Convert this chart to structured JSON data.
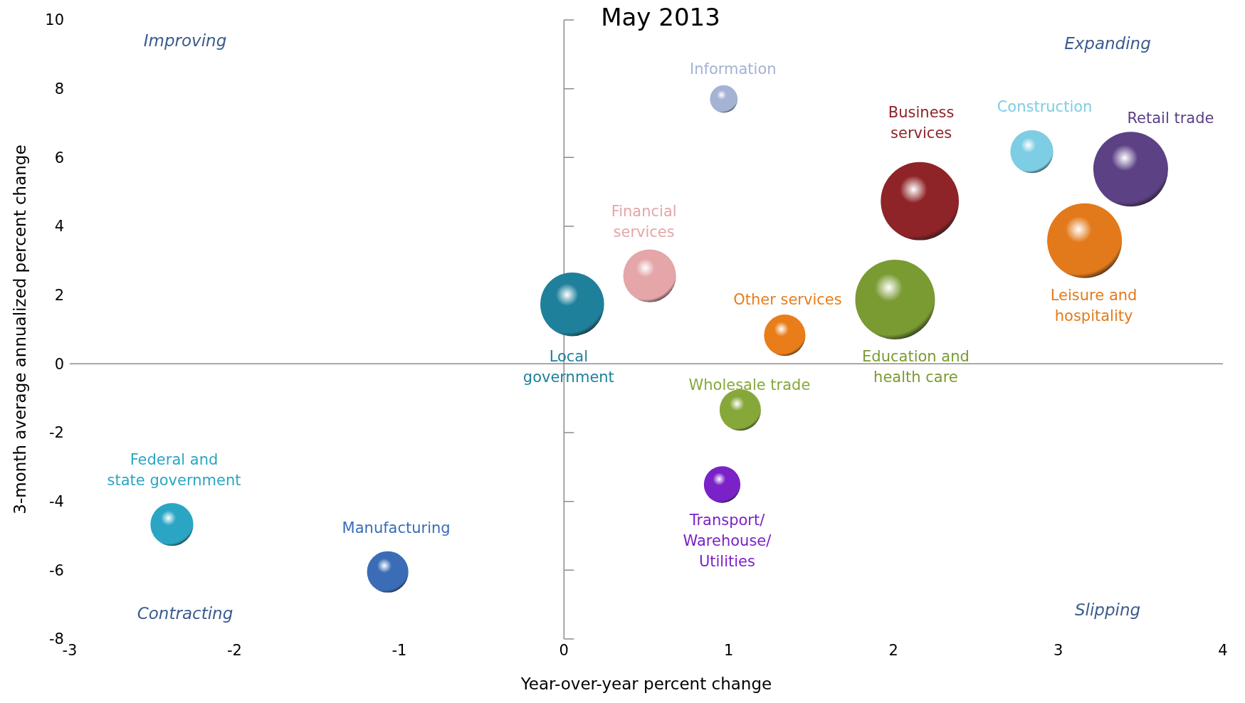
{
  "chart_data": {
    "type": "bubble",
    "title": "May 2013",
    "xlabel": "Year-over-year percent change",
    "ylabel": "3-month average annualized percent change",
    "annotations": [
      "Improving",
      "Expanding",
      "Contracting",
      "Slipping"
    ],
    "xlim": [
      -3,
      4
    ],
    "xticks": [
      -3,
      -2,
      -1,
      0,
      1,
      2,
      3,
      4
    ],
    "ylim": [
      -8,
      10
    ],
    "yticks": [
      -8,
      -6,
      -4,
      -2,
      0,
      2,
      4,
      6,
      8,
      10
    ],
    "marker": "circle",
    "series": [
      {
        "name": "Information",
        "color": "#a4b2d4",
        "x": [
          0.97
        ],
        "values": [
          7.7
        ],
        "sizes": [
          0.12
        ]
      },
      {
        "name": "Business services",
        "color": "#8e2428",
        "x": [
          2.16
        ],
        "values": [
          4.73
        ],
        "sizes": [
          0.96
        ]
      },
      {
        "name": "Construction",
        "color": "#7dcde4",
        "x": [
          2.84
        ],
        "values": [
          6.17
        ],
        "sizes": [
          0.29
        ]
      },
      {
        "name": "Retail trade",
        "color": "#5c4185",
        "x": [
          3.44
        ],
        "values": [
          5.66
        ],
        "sizes": [
          0.88
        ]
      },
      {
        "name": "Leisure and hospitality",
        "color": "#e27a1c",
        "x": [
          3.16
        ],
        "values": [
          3.58
        ],
        "sizes": [
          0.88
        ]
      },
      {
        "name": "Financial services",
        "color": "#e4a6a8",
        "x": [
          0.52
        ],
        "values": [
          2.56
        ],
        "sizes": [
          0.44
        ]
      },
      {
        "name": "Local government",
        "color": "#1f809c",
        "x": [
          0.05
        ],
        "values": [
          1.73
        ],
        "sizes": [
          0.64
        ]
      },
      {
        "name": "Other services",
        "color": "#e97d1a",
        "x": [
          1.34
        ],
        "values": [
          0.83
        ],
        "sizes": [
          0.27
        ]
      },
      {
        "name": "Education and health care",
        "color": "#7a9a32",
        "x": [
          2.01
        ],
        "values": [
          1.87
        ],
        "sizes": [
          1
        ]
      },
      {
        "name": "Wholesale trade",
        "color": "#86a83a",
        "x": [
          1.07
        ],
        "values": [
          -1.34
        ],
        "sizes": [
          0.27
        ]
      },
      {
        "name": "Transport/ Warehouse/ Utilities",
        "color": "#7a22c8",
        "x": [
          0.96
        ],
        "values": [
          -3.51
        ],
        "sizes": [
          0.21
        ]
      },
      {
        "name": "Federal and state government",
        "color": "#2aa6c4",
        "x": [
          -2.38
        ],
        "values": [
          -4.67
        ],
        "sizes": [
          0.29
        ]
      },
      {
        "name": "Manufacturing",
        "color": "#3a6db6",
        "x": [
          -1.07
        ],
        "values": [
          -6.05
        ],
        "sizes": [
          0.27
        ]
      }
    ]
  }
}
